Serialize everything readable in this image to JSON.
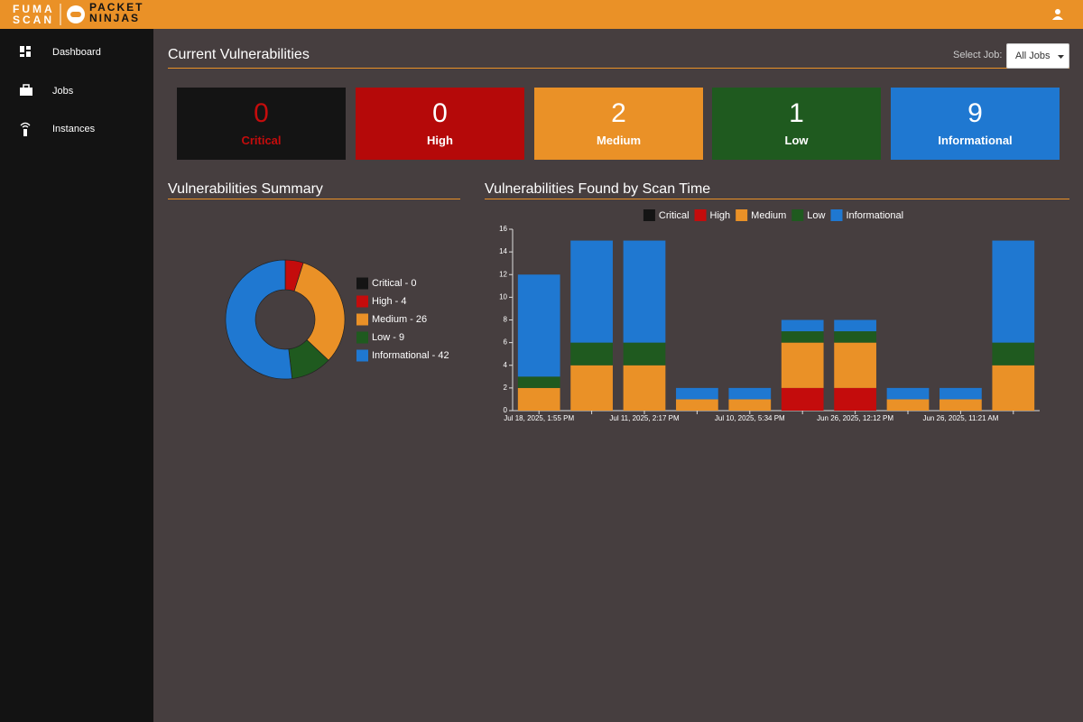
{
  "header": {
    "logo_top": "FUMA",
    "logo_bottom": "SCAN",
    "brand_top": "PACKET",
    "brand_bottom": "NINJAS"
  },
  "nav": [
    "Dashboard",
    "Jobs",
    "Instances"
  ],
  "page": {
    "title": "Current Vulnerabilities",
    "select_label": "Select Job:",
    "select_value": "All Jobs"
  },
  "cards": [
    {
      "count": 0,
      "label": "Critical",
      "color": "#141414",
      "text_color": "#c40c0c"
    },
    {
      "count": 0,
      "label": "High",
      "color": "#b50909",
      "text_color": "#ffffff"
    },
    {
      "count": 2,
      "label": "Medium",
      "color": "#ea9127",
      "text_color": "#ffffff"
    },
    {
      "count": 1,
      "label": "Low",
      "color": "#1f5a1f",
      "text_color": "#ffffff"
    },
    {
      "count": 9,
      "label": "Informational",
      "color": "#1f78d1",
      "text_color": "#ffffff"
    }
  ],
  "chart_data": [
    {
      "type": "pie",
      "title": "Vulnerabilities Summary",
      "categories": [
        "Critical - 0",
        "High - 4",
        "Medium - 26",
        "Low - 9",
        "Informational - 42"
      ],
      "values": [
        0,
        4,
        26,
        9,
        42
      ],
      "colors": [
        "#141414",
        "#c40c0c",
        "#ea9127",
        "#1f5a1f",
        "#1f78d1"
      ]
    },
    {
      "type": "bar",
      "title": "Vulnerabilities Found by Scan Time",
      "stacked": true,
      "legend": "top",
      "categories": [
        "Jul 18, 2025, 1:55 PM",
        null,
        "Jul 11, 2025, 2:17 PM",
        null,
        "Jul 10, 2025, 5:34 PM",
        null,
        "Jun 26, 2025, 12:12 PM",
        null,
        "Jun 26, 2025, 11:21 AM",
        null
      ],
      "series": [
        {
          "name": "Critical",
          "color": "#141414",
          "values": [
            0,
            0,
            0,
            0,
            0,
            0,
            0,
            0,
            0,
            0
          ]
        },
        {
          "name": "High",
          "color": "#c40c0c",
          "values": [
            0,
            0,
            0,
            0,
            0,
            2,
            2,
            0,
            0,
            0
          ]
        },
        {
          "name": "Medium",
          "color": "#ea9127",
          "values": [
            2,
            4,
            4,
            1,
            1,
            4,
            4,
            1,
            1,
            4
          ]
        },
        {
          "name": "Low",
          "color": "#1f5a1f",
          "values": [
            1,
            2,
            2,
            0,
            0,
            1,
            1,
            0,
            0,
            2
          ]
        },
        {
          "name": "Informational",
          "color": "#1f78d1",
          "values": [
            9,
            9,
            9,
            1,
            1,
            1,
            1,
            1,
            1,
            9
          ]
        }
      ],
      "ylim": [
        0,
        16
      ],
      "yticks": [
        0,
        2,
        4,
        6,
        8,
        10,
        12,
        14,
        16
      ]
    }
  ]
}
